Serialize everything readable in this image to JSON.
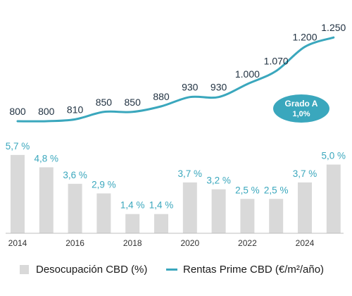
{
  "chart_data": {
    "type": "bar+line",
    "colors": {
      "bar": "#d9d9d9",
      "line": "#3aa7bd",
      "bar_label": "#3aa7bd",
      "line_label": "#1f3040",
      "badge": "#3aa7bd",
      "axis": "#bfbfbf"
    },
    "bars": {
      "name": "Desocupación CBD (%)",
      "x": [
        2014,
        2015,
        2016,
        2017,
        2018,
        2019,
        2020,
        2021,
        2022,
        2023,
        2024,
        2025
      ],
      "values": [
        5.7,
        4.8,
        3.6,
        2.9,
        1.4,
        1.4,
        3.7,
        3.2,
        2.5,
        2.5,
        3.7,
        5.0
      ],
      "labels": [
        "5,7 %",
        "4,8 %",
        "3,6 %",
        "2,9 %",
        "1,4 %",
        "1,4 %",
        "3,7 %",
        "3,2 %",
        "2,5 %",
        "2,5 %",
        "3,7 %",
        "5,0 %"
      ]
    },
    "line": {
      "name": "Rentas Prime CBD (€/m²/año)",
      "x": [
        2014,
        2015,
        2016,
        2017,
        2018,
        2019,
        2020,
        2021,
        2022,
        2023,
        2024,
        2025
      ],
      "values": [
        800,
        800,
        810,
        850,
        850,
        880,
        930,
        930,
        1000,
        1070,
        1200,
        1250
      ],
      "labels": [
        "800",
        "800",
        "810",
        "850",
        "850",
        "880",
        "930",
        "930",
        "1.000",
        "1.070",
        "1.200",
        "1.250"
      ]
    },
    "x_ticks": [
      "2014",
      "2016",
      "2018",
      "2020",
      "2022",
      "2024"
    ],
    "x_tick_values": [
      2014,
      2016,
      2018,
      2020,
      2022,
      2024
    ],
    "badge": {
      "line1": "Grado A",
      "line2": "1,0%"
    },
    "legend": {
      "position": "bottom"
    }
  }
}
